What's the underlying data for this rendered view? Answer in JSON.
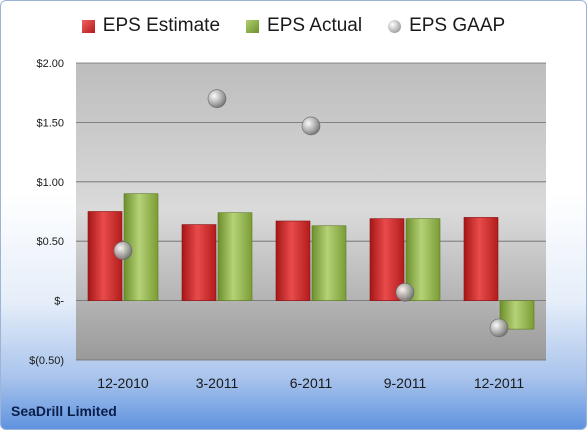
{
  "chart_data": {
    "type": "bar",
    "categories": [
      "12-2010",
      "3-2011",
      "6-2011",
      "9-2011",
      "12-2011"
    ],
    "series": [
      {
        "name": "EPS Estimate",
        "kind": "bar",
        "color": "#c62828",
        "values": [
          0.75,
          0.64,
          0.67,
          0.69,
          0.7
        ]
      },
      {
        "name": "EPS Actual",
        "kind": "bar",
        "color": "#8aab42",
        "values": [
          0.9,
          0.74,
          0.63,
          0.69,
          -0.24
        ]
      },
      {
        "name": "EPS GAAP",
        "kind": "scatter",
        "color": "#9e9e9e",
        "values": [
          0.42,
          1.7,
          1.47,
          0.07,
          -0.23
        ]
      }
    ],
    "yticks": [
      "$2.00",
      "$1.50",
      "$1.00",
      "$0.50",
      "$-",
      "$(0.50)"
    ],
    "ylim": [
      -0.5,
      2.0
    ],
    "grid": true,
    "legend_position": "top"
  },
  "company": "SeaDrill Limited"
}
